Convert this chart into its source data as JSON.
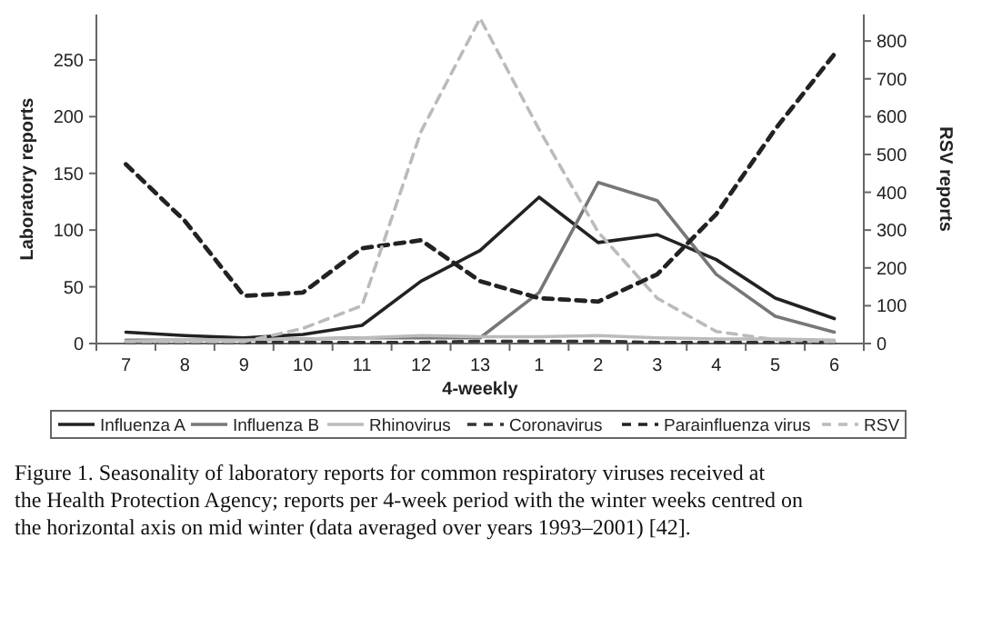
{
  "chart_data": {
    "type": "line",
    "xlabel": "4-weekly",
    "ylabel": "Laboratory reports",
    "y2label": "RSV reports",
    "categories": [
      "7",
      "8",
      "9",
      "10",
      "11",
      "12",
      "13",
      "1",
      "2",
      "3",
      "4",
      "5",
      "6"
    ],
    "series": [
      {
        "name": "Influenza A",
        "color": "#222222",
        "line_style": "solid",
        "values": [
          10,
          7,
          5,
          8,
          16,
          55,
          82,
          129,
          89,
          96,
          74,
          40,
          22
        ]
      },
      {
        "name": "Influenza B",
        "color": "#777777",
        "line_style": "solid",
        "values": [
          3,
          3,
          3,
          4,
          5,
          5,
          5,
          45,
          142,
          126,
          61,
          24,
          10
        ]
      },
      {
        "name": "Rhinovirus",
        "color": "#bbbbbb",
        "line_style": "solid",
        "values": [
          2,
          3,
          3,
          4,
          5,
          7,
          6,
          6,
          7,
          5,
          4,
          4,
          3
        ]
      },
      {
        "name": "Coronavirus",
        "color": "#333333",
        "line_style": "dashed",
        "values": [
          1,
          1,
          1,
          1,
          1,
          1,
          2,
          2,
          2,
          1,
          1,
          1,
          1
        ]
      },
      {
        "name": "Parainfluenza virus",
        "color": "#222222",
        "line_style": "dashed",
        "values": [
          158,
          108,
          42,
          45,
          84,
          91,
          55,
          40,
          37,
          61,
          114,
          189,
          255
        ]
      },
      {
        "name": "RSV",
        "color": "#bbbbbb",
        "line_style": "dashed",
        "axis": "y2",
        "values": [
          5,
          5,
          5,
          40,
          100,
          561,
          860,
          566,
          295,
          120,
          32,
          10,
          5
        ]
      }
    ],
    "ylim": [
      0,
      290
    ],
    "yticks": [
      0,
      50,
      100,
      150,
      200,
      250
    ],
    "y2lim": [
      0,
      870
    ],
    "y2ticks": [
      0,
      100,
      200,
      300,
      400,
      500,
      600,
      700,
      800
    ],
    "grid": false,
    "marker": "none",
    "legend": "bottom",
    "annotations": [
      "Figure 1. Seasonality of laboratory reports for common respiratory viruses received at the Health Protection Agency; reports per 4-week period with the winter weeks centred on the horizontal axis on mid winter (data averaged over years 1993–2001) [42]."
    ]
  }
}
